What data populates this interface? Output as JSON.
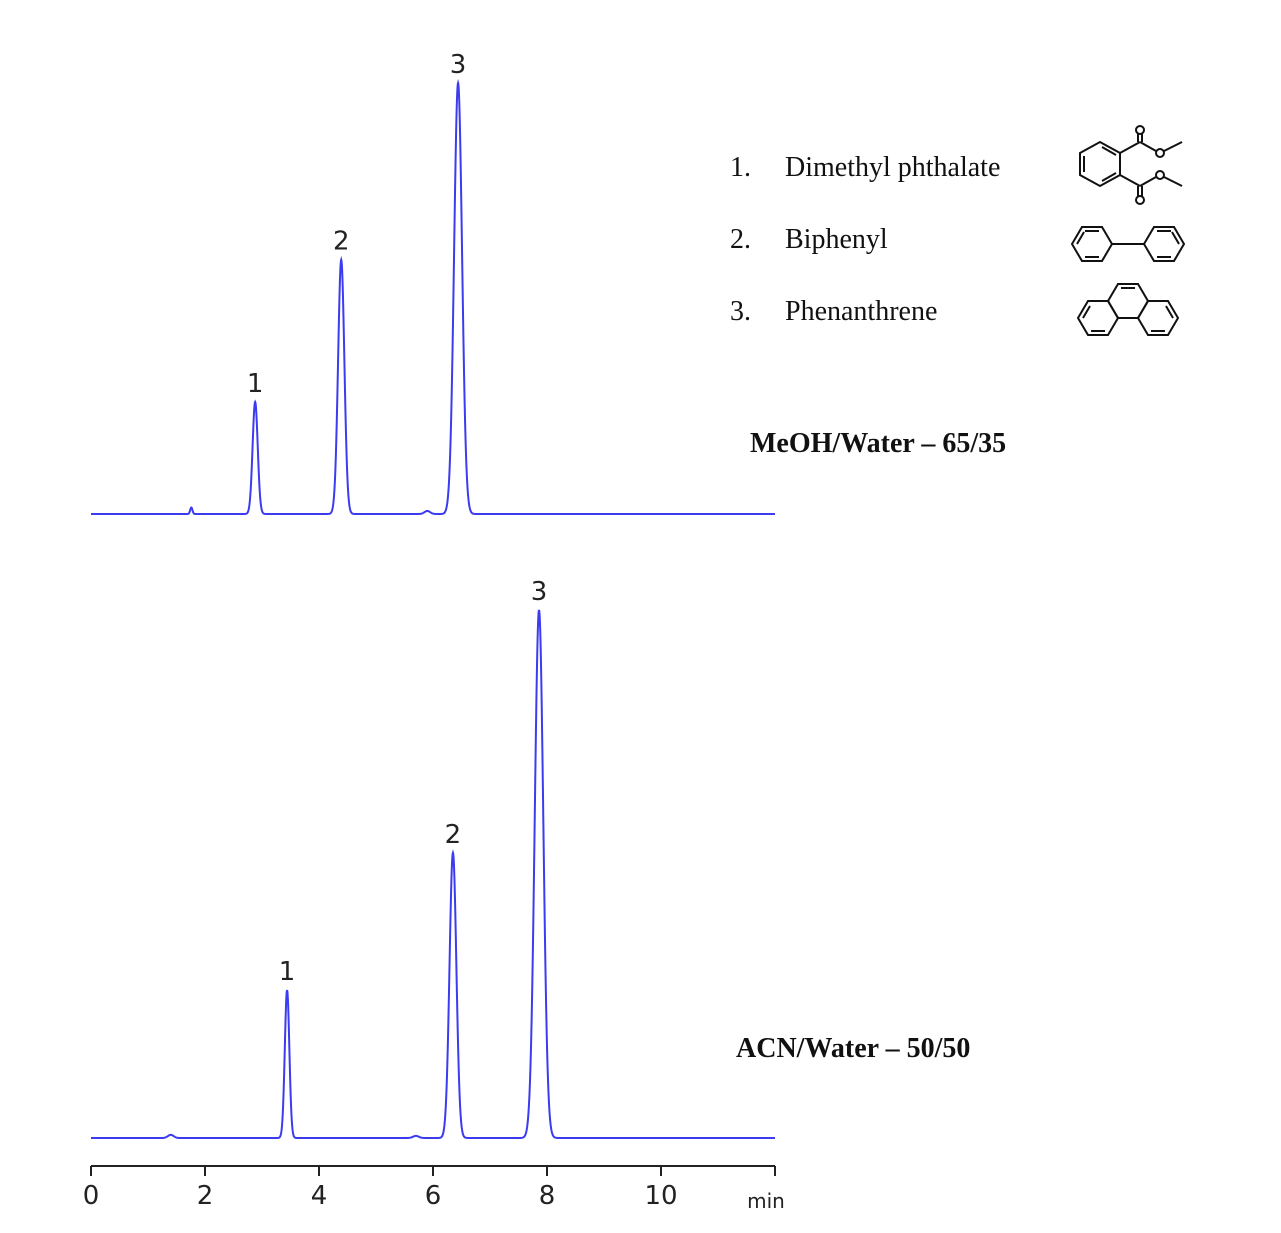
{
  "chart_data": {
    "type": "line",
    "xlabel": "min",
    "xlim": [
      0,
      12
    ],
    "xticks": [
      0,
      2,
      4,
      6,
      8,
      10
    ],
    "grid": false,
    "line_color": "#3b3bf0",
    "y_unit": "relative height (% of largest peak in each trace)",
    "legend": [
      {
        "number": "1.",
        "name": "Dimethyl phthalate",
        "structure_icon": "dimethyl-phthalate-structure"
      },
      {
        "number": "2.",
        "name": "Biphenyl",
        "structure_icon": "biphenyl-structure"
      },
      {
        "number": "3.",
        "name": "Phenanthrene",
        "structure_icon": "phenanthrene-structure"
      }
    ],
    "series": [
      {
        "name": "MeOH/Water – 65/35",
        "peaks": [
          {
            "label": "1",
            "rt": 2.88,
            "height": 26,
            "width_min": 0.045
          },
          {
            "label": "2",
            "rt": 4.39,
            "height": 59,
            "width_min": 0.055
          },
          {
            "label": "3",
            "rt": 6.44,
            "height": 100,
            "width_min": 0.07
          }
        ],
        "minor_peaks": [
          {
            "rt": 1.76,
            "height": 1.5,
            "width_min": 0.02
          },
          {
            "rt": 5.9,
            "height": 0.7,
            "width_min": 0.05
          }
        ]
      },
      {
        "name": "ACN/Water – 50/50",
        "peaks": [
          {
            "label": "1",
            "rt": 3.44,
            "height": 28,
            "width_min": 0.04
          },
          {
            "label": "2",
            "rt": 6.35,
            "height": 54,
            "width_min": 0.06
          },
          {
            "label": "3",
            "rt": 7.86,
            "height": 100,
            "width_min": 0.075
          }
        ],
        "minor_peaks": [
          {
            "rt": 1.4,
            "height": 0.6,
            "width_min": 0.05
          },
          {
            "rt": 5.7,
            "height": 0.4,
            "width_min": 0.05
          }
        ]
      }
    ]
  }
}
